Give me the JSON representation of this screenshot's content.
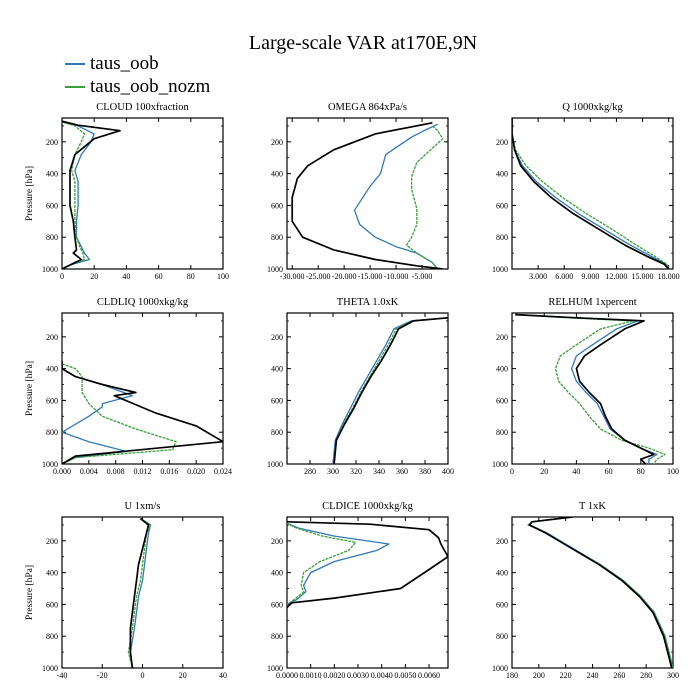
{
  "figure": {
    "title": "Large-scale VAR at170E,9N",
    "legend": [
      {
        "label": "taus_oob",
        "color": "#2f78b8"
      },
      {
        "label": "taus_oob_nozm",
        "color": "#3aa03a"
      }
    ],
    "colors": {
      "control": "#000000",
      "taus_oob": "#2f78b8",
      "taus_oob_nozm": "#3aa03a"
    }
  },
  "chart_data": [
    {
      "type": "line",
      "title": "CLOUD  100xfraction",
      "ylabel": "Pressure [hPa]",
      "xlabel": "",
      "xlim": [
        0,
        100
      ],
      "xticks": [
        "0",
        "20",
        "40",
        "60",
        "80",
        "100"
      ],
      "ylim": [
        1000,
        50
      ],
      "yticks": [
        "200",
        "400",
        "600",
        "800",
        "1000"
      ],
      "grid": false,
      "series": [
        {
          "name": "",
          "color": "#000000",
          "x": [
            0,
            10,
            36,
            20,
            8,
            5,
            5,
            5,
            7,
            8,
            9,
            7,
            12,
            4,
            0
          ],
          "y": [
            70,
            95,
            130,
            180,
            280,
            380,
            500,
            600,
            700,
            800,
            880,
            900,
            940,
            980,
            1000
          ]
        },
        {
          "name": "taus_oob",
          "color": "#2f78b8",
          "x": [
            0,
            10,
            20,
            18,
            12,
            8,
            10,
            10,
            9,
            9,
            12,
            14,
            17,
            5,
            0
          ],
          "y": [
            75,
            100,
            150,
            200,
            280,
            380,
            450,
            600,
            700,
            800,
            860,
            900,
            940,
            975,
            1000
          ]
        },
        {
          "name": "taus_oob_nozm",
          "color": "#3aa03a",
          "x": [
            0,
            8,
            14,
            12,
            8,
            6,
            8,
            8,
            8,
            9,
            11,
            13,
            14,
            5,
            0
          ],
          "y": [
            75,
            100,
            150,
            200,
            280,
            380,
            450,
            600,
            700,
            800,
            860,
            900,
            940,
            975,
            1000
          ]
        }
      ]
    },
    {
      "type": "line",
      "title": "OMEGA  864xPa/s",
      "ylabel": "",
      "xlabel": "",
      "xlim": [
        -31,
        0
      ],
      "xticks": [
        "-30.000",
        "-25.000",
        "-20.000",
        "-15.000",
        "-10.000",
        "-5.000"
      ],
      "ylim": [
        1000,
        50
      ],
      "yticks": [
        "200",
        "400",
        "600",
        "800",
        "1000"
      ],
      "grid": false,
      "series": [
        {
          "name": "",
          "color": "#000000",
          "x": [
            -3,
            -14,
            -22,
            -27,
            -29,
            -30,
            -30,
            -28,
            -22,
            -14,
            -6,
            -1
          ],
          "y": [
            80,
            150,
            250,
            350,
            430,
            550,
            700,
            800,
            880,
            940,
            980,
            1000
          ]
        },
        {
          "name": "taus_oob",
          "color": "#2f78b8",
          "x": [
            -2,
            -4,
            -7,
            -12,
            -13,
            -15,
            -18,
            -17,
            -14,
            -10,
            -6,
            -3,
            -2
          ],
          "y": [
            90,
            120,
            170,
            280,
            400,
            480,
            630,
            720,
            800,
            860,
            900,
            960,
            1000
          ]
        },
        {
          "name": "taus_oob_nozm",
          "color": "#3aa03a",
          "x": [
            -3,
            -2,
            -1,
            -3,
            -6,
            -7,
            -7,
            -6,
            -6,
            -7,
            -8,
            -6,
            -3,
            -2
          ],
          "y": [
            100,
            130,
            180,
            240,
            330,
            420,
            500,
            620,
            720,
            800,
            850,
            900,
            960,
            1000
          ]
        }
      ]
    },
    {
      "type": "line",
      "title": "Q  1000xkg/kg",
      "ylabel": "",
      "xlabel": "",
      "xlim": [
        0,
        18.5
      ],
      "xticks": [
        "3.000",
        "6.000",
        "9.000",
        "12.000",
        "15.000",
        "18.000"
      ],
      "ylim": [
        1000,
        50
      ],
      "yticks": [
        "200",
        "400",
        "600",
        "800",
        "1000"
      ],
      "grid": false,
      "series": [
        {
          "name": "",
          "color": "#000000",
          "x": [
            0,
            0,
            0.3,
            1,
            2.5,
            4.5,
            7,
            10,
            13,
            15.5,
            17.5,
            18
          ],
          "y": [
            50,
            150,
            250,
            350,
            450,
            550,
            650,
            750,
            850,
            920,
            970,
            1000
          ]
        },
        {
          "name": "taus_oob",
          "color": "#2f78b8",
          "x": [
            0,
            0,
            0.3,
            1.2,
            2.8,
            5,
            7.6,
            10.6,
            13.6,
            16,
            17.7,
            18
          ],
          "y": [
            50,
            150,
            250,
            350,
            450,
            550,
            650,
            750,
            850,
            920,
            970,
            1000
          ]
        },
        {
          "name": "taus_oob_nozm",
          "color": "#3aa03a",
          "x": [
            0,
            0,
            0.4,
            1.6,
            3.5,
            5.8,
            8.5,
            11.5,
            14.3,
            16.4,
            17.8,
            18
          ],
          "y": [
            50,
            150,
            250,
            350,
            450,
            550,
            650,
            750,
            850,
            920,
            970,
            1000
          ]
        }
      ]
    },
    {
      "type": "line",
      "title": "CLDLIQ  1000xkg/kg",
      "ylabel": "Pressure [hPa]",
      "xlabel": "",
      "xlim": [
        0,
        0.024
      ],
      "xticks": [
        "0.000",
        "0.004",
        "0.008",
        "0.012",
        "0.016",
        "0.020",
        "0.024"
      ],
      "ylim": [
        1000,
        50
      ],
      "yticks": [
        "200",
        "400",
        "600",
        "800",
        "1000"
      ],
      "grid": false,
      "series": [
        {
          "name": "",
          "color": "#000000",
          "x": [
            0,
            0,
            0.002,
            0.006,
            0.011,
            0.0078,
            0.014,
            0.02,
            0.024,
            0.002,
            0
          ],
          "y": [
            350,
            400,
            450,
            500,
            550,
            570,
            680,
            760,
            860,
            950,
            1000
          ]
        },
        {
          "name": "taus_oob",
          "color": "#2f78b8",
          "x": [
            0,
            0,
            0.002,
            0.006,
            0.0105,
            0.006,
            0.006,
            0.004,
            0,
            0.004,
            0.0095,
            0.002,
            0
          ],
          "y": [
            350,
            400,
            450,
            500,
            570,
            620,
            640,
            700,
            800,
            860,
            920,
            960,
            1000
          ]
        },
        {
          "name": "taus_oob_nozm",
          "color": "#3aa03a",
          "x": [
            0,
            0.002,
            0.003,
            0.003,
            0.004,
            0.006,
            0.011,
            0.017,
            0.0165,
            0.002,
            0
          ],
          "y": [
            370,
            400,
            450,
            550,
            620,
            700,
            780,
            860,
            910,
            960,
            1000
          ]
        }
      ]
    },
    {
      "type": "line",
      "title": "THETA  1.0xK",
      "ylabel": "",
      "xlabel": "",
      "xlim": [
        260,
        400
      ],
      "xticks": [
        "280",
        "300",
        "320",
        "340",
        "360",
        "380",
        "400"
      ],
      "ylim": [
        1000,
        50
      ],
      "yticks": [
        "200",
        "400",
        "600",
        "800",
        "1000"
      ],
      "grid": false,
      "series": [
        {
          "name": "",
          "color": "#000000",
          "x": [
            400,
            370,
            357,
            350,
            342,
            333,
            325,
            318,
            310,
            303,
            301
          ],
          "y": [
            80,
            100,
            150,
            250,
            350,
            450,
            550,
            650,
            750,
            850,
            1000
          ]
        },
        {
          "name": "taus_oob",
          "color": "#2f78b8",
          "x": [
            400,
            368,
            353,
            346,
            338,
            330,
            322,
            315,
            308,
            302,
            300
          ],
          "y": [
            80,
            100,
            150,
            250,
            350,
            450,
            550,
            650,
            750,
            850,
            1000
          ]
        },
        {
          "name": "taus_oob_nozm",
          "color": "#3aa03a",
          "x": [
            400,
            369,
            355,
            348,
            340,
            332,
            324,
            317,
            309,
            303,
            301
          ],
          "y": [
            80,
            100,
            150,
            250,
            350,
            450,
            550,
            650,
            750,
            850,
            1000
          ]
        }
      ]
    },
    {
      "type": "line",
      "title": "RELHUM  1xpercent",
      "ylabel": "",
      "xlabel": "",
      "xlim": [
        0,
        100
      ],
      "xticks": [
        "0",
        "20",
        "40",
        "60",
        "80",
        "100"
      ],
      "ylim": [
        1000,
        50
      ],
      "yticks": [
        "200",
        "400",
        "600",
        "800",
        "1000"
      ],
      "grid": false,
      "series": [
        {
          "name": "",
          "color": "#000000",
          "x": [
            2,
            40,
            82,
            70,
            55,
            45,
            40,
            42,
            48,
            55,
            58,
            62,
            70,
            80,
            88,
            80,
            83
          ],
          "y": [
            60,
            80,
            100,
            150,
            250,
            320,
            400,
            480,
            550,
            620,
            700,
            780,
            850,
            900,
            940,
            970,
            1000
          ]
        },
        {
          "name": "taus_oob",
          "color": "#2f78b8",
          "x": [
            3,
            40,
            78,
            65,
            50,
            40,
            37,
            40,
            46,
            53,
            57,
            61,
            70,
            80,
            90,
            85,
            85
          ],
          "y": [
            60,
            80,
            100,
            150,
            250,
            320,
            400,
            480,
            550,
            620,
            700,
            780,
            850,
            900,
            940,
            970,
            1000
          ]
        },
        {
          "name": "taus_oob_nozm",
          "color": "#3aa03a",
          "x": [
            3,
            35,
            75,
            55,
            40,
            30,
            27,
            29,
            35,
            42,
            48,
            55,
            68,
            85,
            95,
            90,
            88
          ],
          "y": [
            60,
            80,
            100,
            150,
            250,
            320,
            400,
            480,
            550,
            620,
            700,
            780,
            850,
            900,
            940,
            970,
            1000
          ]
        }
      ]
    },
    {
      "type": "line",
      "title": "U  1xm/s",
      "ylabel": "Pressure [hPa]",
      "xlabel": "",
      "xlim": [
        -40,
        40
      ],
      "xticks": [
        "-40",
        "-20",
        "0",
        "20",
        "40"
      ],
      "ylim": [
        1000,
        50
      ],
      "yticks": [
        "200",
        "400",
        "600",
        "800",
        "1000"
      ],
      "grid": false,
      "series": [
        {
          "name": "",
          "color": "#000000",
          "x": [
            -1,
            3,
            2,
            0,
            -2,
            -3,
            -4,
            -5,
            -6,
            -6,
            -5
          ],
          "y": [
            60,
            100,
            150,
            250,
            350,
            450,
            550,
            650,
            750,
            900,
            1000
          ]
        },
        {
          "name": "taus_oob",
          "color": "#2f78b8",
          "x": [
            -1,
            4,
            3,
            2,
            1,
            0,
            -2,
            -3,
            -4,
            -6,
            -5
          ],
          "y": [
            60,
            100,
            150,
            250,
            350,
            450,
            550,
            650,
            750,
            900,
            1000
          ]
        },
        {
          "name": "taus_oob_nozm",
          "color": "#3aa03a",
          "x": [
            -1,
            4,
            2,
            1,
            0,
            -1,
            -3,
            -4,
            -5,
            -7,
            -5
          ],
          "y": [
            60,
            100,
            150,
            250,
            350,
            450,
            550,
            650,
            750,
            900,
            1000
          ]
        }
      ]
    },
    {
      "type": "line",
      "title": "CLDICE  1000xkg/kg",
      "ylabel": "",
      "xlabel": "",
      "xlim": [
        0,
        0.0068
      ],
      "xticks": [
        "0.0000",
        "0.0010",
        "0.0020",
        "0.0030",
        "0.0040",
        "0.0050",
        "0.0060"
      ],
      "ylim": [
        1000,
        50
      ],
      "yticks": [
        "200",
        "400",
        "600",
        "800",
        "1000"
      ],
      "grid": false,
      "series": [
        {
          "name": "",
          "color": "#000000",
          "x": [
            0,
            0.0035,
            0.006,
            0.0064,
            0.0065,
            0.0068,
            0.006,
            0.0048,
            0.002,
            0.0002,
            0
          ],
          "y": [
            80,
            95,
            130,
            180,
            220,
            300,
            380,
            500,
            560,
            590,
            620
          ]
        },
        {
          "name": "taus_oob",
          "color": "#2f78b8",
          "x": [
            0,
            0.0005,
            0.002,
            0.0043,
            0.0038,
            0.002,
            0.001,
            0.0007,
            0.0008,
            0.0004,
            0
          ],
          "y": [
            90,
            120,
            170,
            220,
            260,
            330,
            400,
            480,
            520,
            570,
            600
          ]
        },
        {
          "name": "taus_oob_nozm",
          "color": "#3aa03a",
          "x": [
            0,
            0.0004,
            0.0015,
            0.0029,
            0.0026,
            0.0014,
            0.0007,
            0.0006,
            0.0007,
            0.0003,
            0
          ],
          "y": [
            90,
            120,
            170,
            210,
            260,
            330,
            400,
            480,
            520,
            570,
            600
          ]
        }
      ]
    },
    {
      "type": "line",
      "title": "T  1xK",
      "ylabel": "",
      "xlabel": "",
      "xlim": [
        180,
        300
      ],
      "xticks": [
        "180",
        "200",
        "220",
        "240",
        "260",
        "280",
        "300"
      ],
      "ylim": [
        1000,
        50
      ],
      "yticks": [
        "200",
        "400",
        "600",
        "800",
        "1000"
      ],
      "grid": false,
      "series": [
        {
          "name": "",
          "color": "#000000",
          "x": [
            225,
            195,
            193,
            205,
            225,
            245,
            262,
            275,
            285,
            293,
            299
          ],
          "y": [
            50,
            80,
            100,
            150,
            250,
            350,
            450,
            550,
            650,
            800,
            1000
          ]
        },
        {
          "name": "taus_oob",
          "color": "#2f78b8",
          "x": [
            225,
            195,
            193,
            206,
            226,
            246,
            263,
            276,
            286,
            294,
            300
          ],
          "y": [
            50,
            80,
            100,
            150,
            250,
            350,
            450,
            550,
            650,
            800,
            1000
          ]
        },
        {
          "name": "taus_oob_nozm",
          "color": "#3aa03a",
          "x": [
            225,
            195,
            192,
            205,
            225,
            246,
            263,
            276,
            286,
            294,
            300
          ],
          "y": [
            50,
            80,
            100,
            150,
            250,
            350,
            450,
            550,
            650,
            800,
            1000
          ]
        }
      ]
    }
  ]
}
